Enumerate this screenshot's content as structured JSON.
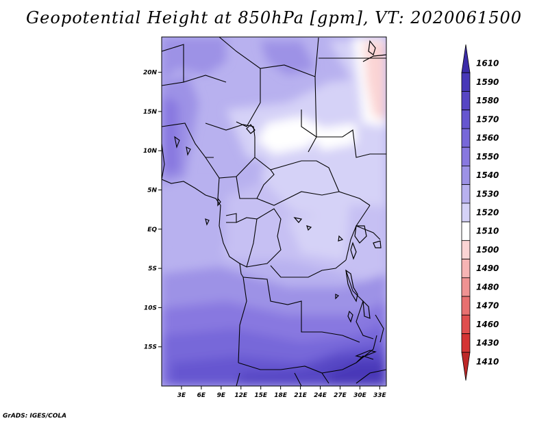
{
  "title": "Geopotential Height at 850hPa [gpm], VT: 2020061500",
  "credit": "GrADS: IGES/COLA",
  "chart_data": {
    "type": "heatmap",
    "variable": "Geopotential Height at 850hPa",
    "units": "gpm",
    "valid_time": "2020061500",
    "lon_range": [
      0,
      34
    ],
    "lat_range": [
      -20,
      24.5
    ],
    "x_ticks": [
      "3E",
      "6E",
      "9E",
      "12E",
      "15E",
      "18E",
      "21E",
      "24E",
      "27E",
      "30E",
      "33E"
    ],
    "x_tick_values": [
      3,
      6,
      9,
      12,
      15,
      18,
      21,
      24,
      27,
      30,
      33
    ],
    "y_ticks": [
      "20N",
      "15N",
      "10N",
      "5N",
      "EQ",
      "5S",
      "10S",
      "15S"
    ],
    "y_tick_values": [
      20,
      15,
      10,
      5,
      0,
      -5,
      -10,
      -15
    ],
    "legend_levels": [
      "1610",
      "1590",
      "1580",
      "1570",
      "1560",
      "1550",
      "1540",
      "1530",
      "1520",
      "1510",
      "1500",
      "1490",
      "1480",
      "1470",
      "1460",
      "1430",
      "1410"
    ],
    "legend_colors": [
      "#3c2ca8",
      "#4838b8",
      "#5746c4",
      "#6656d0",
      "#7767d9",
      "#8878e0",
      "#9d92e6",
      "#b8b1ef",
      "#d5d2f7",
      "#ffffff",
      "#fbd4d4",
      "#f6b4b4",
      "#ef9292",
      "#e87070",
      "#e04e4e",
      "#d43434",
      "#bd2828"
    ],
    "legend_placement": "right",
    "colormap": "blue-white-red"
  }
}
